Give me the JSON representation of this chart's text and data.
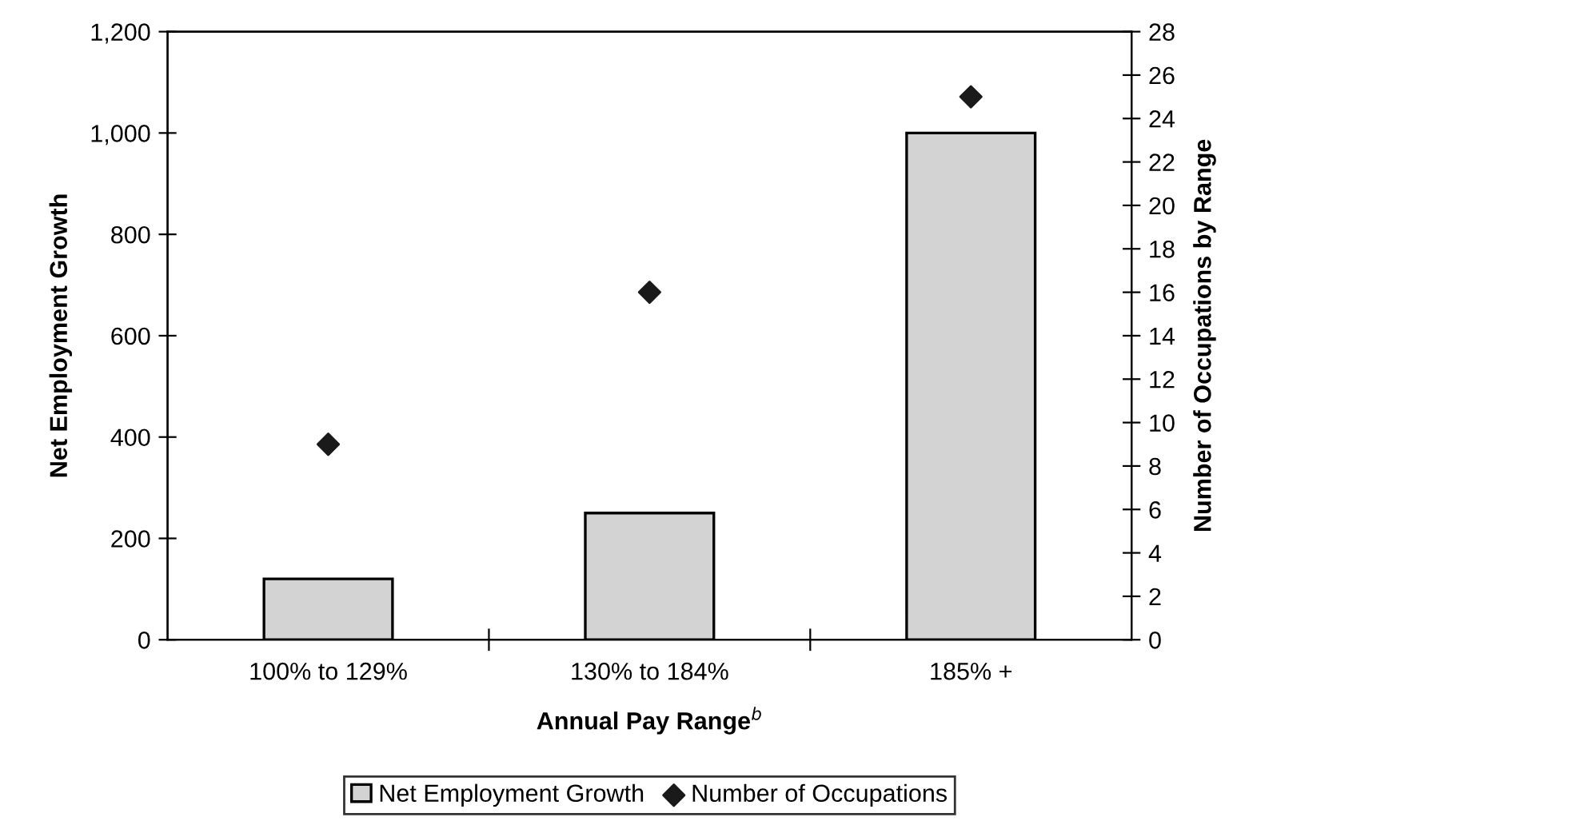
{
  "chart_data": {
    "type": "bar",
    "xlabel": "Annual Pay Range$^{b}$",
    "ylabel": "Net Employment Growth",
    "y2label": "Number of Occupations by Range",
    "categories": [
      "100% to 129%",
      "130% to 184%",
      "185% +"
    ],
    "series": [
      {
        "name": "Net Employment Growth",
        "color": "#d3d3d3",
        "values": [
          120,
          250,
          1000
        ]
      },
      {
        "name": "Number of Occupations",
        "type": "scatter",
        "axis": "y2",
        "color": "#1a1a1a",
        "marker": "diamond",
        "values": [
          9,
          16,
          25
        ]
      }
    ],
    "ylim": [
      0,
      1200
    ],
    "yticks": [
      0,
      200,
      400,
      600,
      800,
      {
        "value": 1000,
        "label": "1,000"
      },
      {
        "value": 1200,
        "label": "1,200"
      }
    ],
    "y2lim": [
      0,
      28
    ],
    "y2ticks": [
      0,
      2,
      4,
      6,
      8,
      10,
      12,
      14,
      16,
      18,
      20,
      22,
      24,
      26,
      28
    ],
    "grid": false,
    "legend": "bottom"
  }
}
